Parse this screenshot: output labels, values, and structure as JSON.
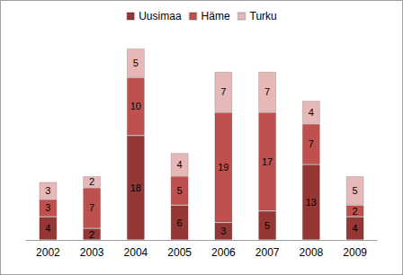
{
  "chart_data": {
    "type": "bar",
    "stacked": true,
    "data_labels": true,
    "legend": "top",
    "tick_labels": "x",
    "grid": false,
    "categories": [
      "2002",
      "2003",
      "2004",
      "2005",
      "2006",
      "2007",
      "2008",
      "2009"
    ],
    "series": [
      {
        "name": "Uusimaa",
        "color": "#953735",
        "values": [
          4,
          2,
          18,
          6,
          3,
          5,
          13,
          4
        ]
      },
      {
        "name": "Häme",
        "color": "#c0504d",
        "values": [
          3,
          7,
          10,
          5,
          19,
          17,
          7,
          2
        ]
      },
      {
        "name": "Turku",
        "color": "#e6b9b8",
        "values": [
          3,
          2,
          5,
          4,
          7,
          7,
          4,
          5
        ]
      }
    ]
  }
}
